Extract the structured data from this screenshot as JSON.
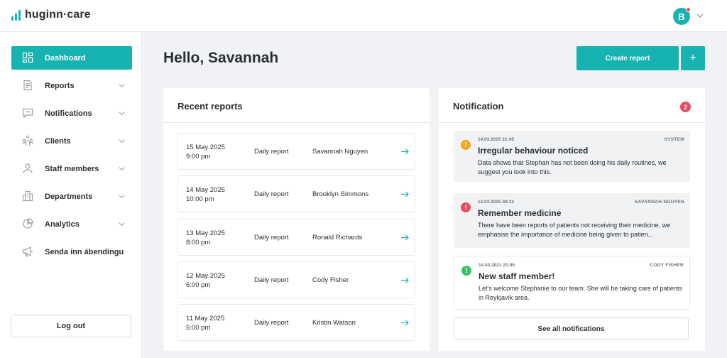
{
  "brand": {
    "name": "huginn·care",
    "accent": "#16b3b1"
  },
  "user": {
    "initial": "B",
    "has_notification": true
  },
  "sidebar": {
    "items": [
      {
        "label": "Dashboard",
        "icon": "dashboard-icon",
        "active": true,
        "has_chevron": false
      },
      {
        "label": "Reports",
        "icon": "document-icon",
        "active": false,
        "has_chevron": true
      },
      {
        "label": "Notifications",
        "icon": "message-icon",
        "active": false,
        "has_chevron": true
      },
      {
        "label": "Clients",
        "icon": "clients-icon",
        "active": false,
        "has_chevron": true
      },
      {
        "label": "Staff members",
        "icon": "user-icon",
        "active": false,
        "has_chevron": true
      },
      {
        "label": "Departments",
        "icon": "building-icon",
        "active": false,
        "has_chevron": true
      },
      {
        "label": "Analytics",
        "icon": "pie-chart-icon",
        "active": false,
        "has_chevron": true
      },
      {
        "label": "Senda inn ábendingu",
        "icon": "megaphone-icon",
        "active": false,
        "has_chevron": false
      }
    ],
    "logout_label": "Log out"
  },
  "main": {
    "greeting": "Hello, Savannah",
    "create_report_label": "Create report",
    "plus_label": "+"
  },
  "recent_reports": {
    "title": "Recent reports",
    "rows": [
      {
        "date": "15 May 2025",
        "time": "9:00 pm",
        "type": "Daily report",
        "name": "Savannah Nguyen"
      },
      {
        "date": "14 May 2025",
        "time": "10:00 pm",
        "type": "Daily report",
        "name": "Brooklyn Simmons"
      },
      {
        "date": "13 May 2025",
        "time": "8:00 pm",
        "type": "Daily report",
        "name": "Ronald Richards"
      },
      {
        "date": "12 May 2025",
        "time": "6:00 pm",
        "type": "Daily report",
        "name": "Cody Fisher"
      },
      {
        "date": "11 May 2025",
        "time": "5:00 pm",
        "type": "Daily report",
        "name": "Kristin Watson"
      }
    ]
  },
  "notifications": {
    "title": "Notification",
    "count": "2",
    "items": [
      {
        "timestamp": "14.03.2025 21:45",
        "author": "SYSTEM",
        "title": "Irregular behaviour noticed",
        "text": "Data shows that Stephan has not been doing his daily routines, we suggest you look into this.",
        "level": "warning",
        "level_color": "#f5a623",
        "icon": "!",
        "style": "grey"
      },
      {
        "timestamp": "12.03.2025 09:32",
        "author": "SAVANNAH NGUYEN",
        "title": "Remember medicine",
        "text": "There have been reports of patients not receiving their medicine, we emphasise the importance of medicine being given to patien...",
        "level": "error",
        "level_color": "#e84a5f",
        "icon": "!",
        "style": "grey"
      },
      {
        "timestamp": "14.03.2021 21:45",
        "author": "CODY FISHER",
        "title": "New staff member!",
        "text": "Let's welcome Stephanie to our team. She will be taking care of patients in Reykjavík area.",
        "level": "success",
        "level_color": "#34c36b",
        "icon": "!",
        "style": "white"
      }
    ],
    "see_all_label": "See all notifications"
  }
}
